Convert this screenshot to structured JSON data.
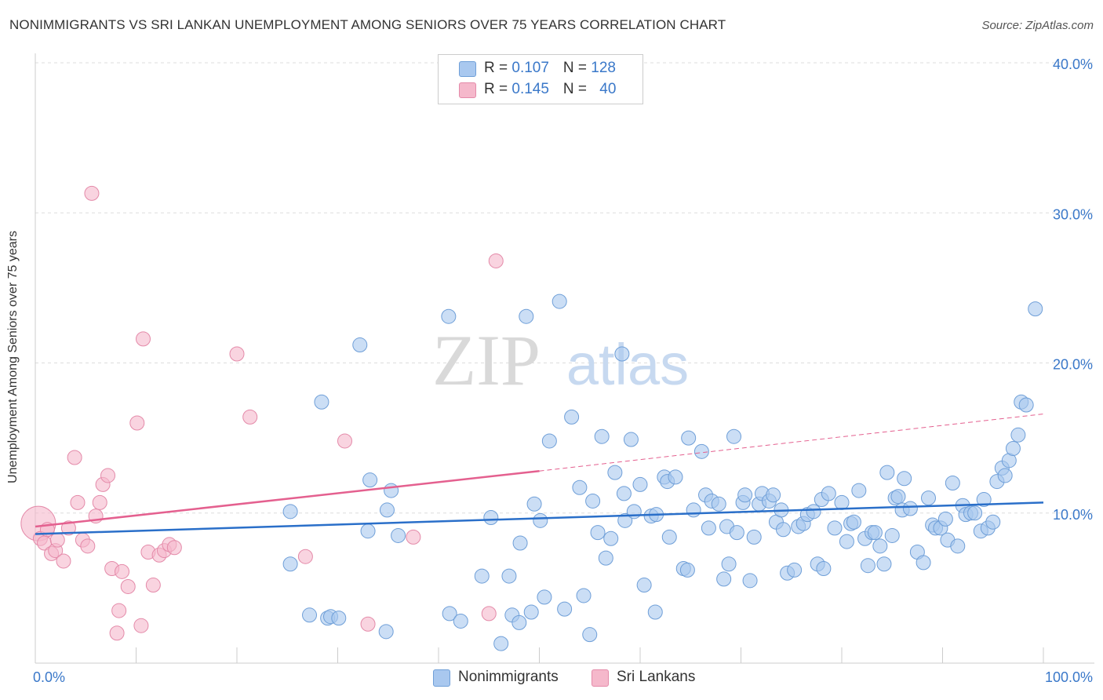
{
  "title": "NONIMMIGRANTS VS SRI LANKAN UNEMPLOYMENT AMONG SENIORS OVER 75 YEARS CORRELATION CHART",
  "source": "Source: ZipAtlas.com",
  "watermark": {
    "zip": "ZIP",
    "atlas": "atlas"
  },
  "legend": {
    "rows": [
      {
        "r_label": "R = ",
        "r_value": "0.107",
        "n_label": "N = ",
        "n_value": "128"
      },
      {
        "r_label": "R = ",
        "r_value": "0.145",
        "n_label": "N = ",
        "n_value": "40"
      }
    ]
  },
  "chart_data": {
    "type": "scatter",
    "title": "NONIMMIGRANTS VS SRI LANKAN UNEMPLOYMENT AMONG SENIORS OVER 75 YEARS CORRELATION CHART",
    "xlabel": "",
    "ylabel": "Unemployment Among Seniors over 75 years",
    "xlim": [
      0,
      100
    ],
    "ylim": [
      0,
      40
    ],
    "x_tick_labels": [
      "0.0%",
      "100.0%"
    ],
    "y_ticks": [
      10,
      20,
      30,
      40
    ],
    "y_tick_labels": [
      "10.0%",
      "20.0%",
      "30.0%",
      "40.0%"
    ],
    "grid": true,
    "colors": {
      "nonimmigrants_fill": "#a9c8ef",
      "nonimmigrants_stroke": "#6f9fd8",
      "nonimmigrants_line": "#2a6fc9",
      "srilankans_fill": "#f5b8cb",
      "srilankans_stroke": "#e48aa9",
      "srilankans_line": "#e4608f",
      "tick_label": "#3a78c9"
    },
    "series": [
      {
        "name": "Nonimmigrants",
        "R": 0.107,
        "N": 128,
        "trend": {
          "x0": 0,
          "y0": 8.6,
          "x1": 100,
          "y1": 10.7
        },
        "points": [
          [
            25.3,
            10.1
          ],
          [
            28.4,
            17.4
          ],
          [
            29.0,
            3.0
          ],
          [
            27.2,
            3.2
          ],
          [
            25.3,
            6.6
          ],
          [
            29.3,
            3.1
          ],
          [
            30.1,
            3.0
          ],
          [
            32.2,
            21.2
          ],
          [
            33.2,
            12.2
          ],
          [
            33.0,
            8.8
          ],
          [
            34.9,
            10.2
          ],
          [
            35.3,
            11.5
          ],
          [
            34.8,
            2.1
          ],
          [
            36.0,
            8.5
          ],
          [
            41.0,
            23.1
          ],
          [
            41.1,
            3.3
          ],
          [
            42.2,
            2.8
          ],
          [
            44.3,
            5.8
          ],
          [
            45.2,
            9.7
          ],
          [
            46.2,
            1.3
          ],
          [
            47.0,
            5.8
          ],
          [
            47.3,
            3.2
          ],
          [
            48.1,
            8.0
          ],
          [
            48.7,
            23.1
          ],
          [
            48.0,
            2.7
          ],
          [
            49.2,
            3.4
          ],
          [
            49.5,
            10.6
          ],
          [
            50.1,
            9.5
          ],
          [
            50.5,
            4.4
          ],
          [
            51.0,
            14.8
          ],
          [
            52.0,
            24.1
          ],
          [
            52.5,
            3.6
          ],
          [
            53.2,
            16.4
          ],
          [
            54.0,
            11.7
          ],
          [
            54.4,
            4.5
          ],
          [
            55.0,
            1.9
          ],
          [
            55.3,
            10.8
          ],
          [
            55.8,
            8.7
          ],
          [
            56.2,
            15.1
          ],
          [
            56.6,
            7.0
          ],
          [
            57.1,
            8.3
          ],
          [
            57.5,
            12.7
          ],
          [
            58.2,
            20.6
          ],
          [
            58.4,
            11.3
          ],
          [
            58.5,
            9.5
          ],
          [
            59.1,
            14.9
          ],
          [
            59.4,
            10.1
          ],
          [
            60.0,
            11.9
          ],
          [
            60.4,
            5.2
          ],
          [
            61.1,
            9.8
          ],
          [
            61.5,
            3.4
          ],
          [
            61.6,
            9.9
          ],
          [
            62.4,
            12.4
          ],
          [
            62.7,
            12.1
          ],
          [
            62.9,
            8.4
          ],
          [
            63.5,
            12.4
          ],
          [
            64.3,
            6.3
          ],
          [
            64.7,
            6.2
          ],
          [
            64.8,
            15.0
          ],
          [
            65.3,
            10.2
          ],
          [
            66.1,
            14.1
          ],
          [
            66.5,
            11.2
          ],
          [
            66.8,
            9.0
          ],
          [
            67.1,
            10.8
          ],
          [
            67.8,
            10.6
          ],
          [
            68.3,
            5.6
          ],
          [
            68.6,
            9.1
          ],
          [
            68.8,
            6.6
          ],
          [
            69.3,
            15.1
          ],
          [
            69.6,
            8.7
          ],
          [
            70.2,
            10.7
          ],
          [
            70.4,
            11.2
          ],
          [
            70.9,
            5.5
          ],
          [
            71.3,
            8.4
          ],
          [
            71.8,
            10.6
          ],
          [
            72.1,
            11.3
          ],
          [
            72.8,
            10.8
          ],
          [
            73.2,
            11.2
          ],
          [
            73.5,
            9.4
          ],
          [
            74.0,
            10.2
          ],
          [
            74.2,
            8.9
          ],
          [
            74.6,
            6.0
          ],
          [
            75.3,
            6.2
          ],
          [
            75.7,
            9.1
          ],
          [
            76.2,
            9.3
          ],
          [
            76.6,
            9.9
          ],
          [
            77.2,
            10.1
          ],
          [
            77.6,
            6.6
          ],
          [
            78.0,
            10.9
          ],
          [
            78.2,
            6.3
          ],
          [
            78.7,
            11.3
          ],
          [
            79.3,
            9.0
          ],
          [
            80.0,
            10.7
          ],
          [
            80.5,
            8.1
          ],
          [
            80.9,
            9.3
          ],
          [
            81.2,
            9.4
          ],
          [
            81.7,
            11.5
          ],
          [
            82.3,
            8.3
          ],
          [
            82.6,
            6.5
          ],
          [
            83.0,
            8.7
          ],
          [
            83.3,
            8.7
          ],
          [
            83.8,
            7.8
          ],
          [
            84.2,
            6.6
          ],
          [
            84.5,
            12.7
          ],
          [
            85.0,
            8.5
          ],
          [
            85.3,
            11.0
          ],
          [
            85.6,
            11.1
          ],
          [
            86.0,
            10.2
          ],
          [
            86.2,
            12.3
          ],
          [
            86.8,
            10.3
          ],
          [
            87.5,
            7.4
          ],
          [
            88.1,
            6.7
          ],
          [
            88.6,
            11.0
          ],
          [
            89.0,
            9.2
          ],
          [
            89.3,
            9.0
          ],
          [
            89.8,
            9.0
          ],
          [
            90.3,
            9.6
          ],
          [
            90.5,
            8.2
          ],
          [
            91.0,
            12.0
          ],
          [
            91.5,
            7.8
          ],
          [
            92.0,
            10.5
          ],
          [
            92.3,
            9.9
          ],
          [
            92.8,
            10.0
          ],
          [
            93.2,
            10.0
          ],
          [
            93.8,
            8.8
          ],
          [
            94.1,
            10.9
          ],
          [
            94.5,
            9.0
          ],
          [
            95.0,
            9.4
          ],
          [
            95.4,
            12.1
          ],
          [
            95.9,
            13.0
          ],
          [
            96.2,
            12.5
          ],
          [
            96.6,
            13.5
          ],
          [
            97.0,
            14.3
          ],
          [
            97.5,
            15.2
          ],
          [
            97.8,
            17.4
          ],
          [
            98.3,
            17.2
          ],
          [
            99.2,
            23.6
          ]
        ]
      },
      {
        "name": "Sri Lankans",
        "R": 0.145,
        "N": 40,
        "trend": {
          "x0": 0,
          "y0": 9.1,
          "x1": 50,
          "y1": 12.8,
          "dashed_to_x": 100,
          "dashed_to_y": 16.6
        },
        "points": [
          [
            0.3,
            9.3
          ],
          [
            0.5,
            8.3
          ],
          [
            0.9,
            8.0
          ],
          [
            1.2,
            8.9
          ],
          [
            1.6,
            7.3
          ],
          [
            2.0,
            7.5
          ],
          [
            2.2,
            8.2
          ],
          [
            2.8,
            6.8
          ],
          [
            3.3,
            9.0
          ],
          [
            3.9,
            13.7
          ],
          [
            4.2,
            10.7
          ],
          [
            4.7,
            8.2
          ],
          [
            5.2,
            7.8
          ],
          [
            5.6,
            31.3
          ],
          [
            6.0,
            9.8
          ],
          [
            6.4,
            10.7
          ],
          [
            6.7,
            11.9
          ],
          [
            7.2,
            12.5
          ],
          [
            7.6,
            6.3
          ],
          [
            8.1,
            2.0
          ],
          [
            8.3,
            3.5
          ],
          [
            8.6,
            6.1
          ],
          [
            9.2,
            5.1
          ],
          [
            10.1,
            16.0
          ],
          [
            10.5,
            2.5
          ],
          [
            10.7,
            21.6
          ],
          [
            11.2,
            7.4
          ],
          [
            11.7,
            5.2
          ],
          [
            12.3,
            7.2
          ],
          [
            12.8,
            7.5
          ],
          [
            13.3,
            7.9
          ],
          [
            13.8,
            7.7
          ],
          [
            20.0,
            20.6
          ],
          [
            21.3,
            16.4
          ],
          [
            26.8,
            7.1
          ],
          [
            30.7,
            14.8
          ],
          [
            33.0,
            2.6
          ],
          [
            37.5,
            8.4
          ],
          [
            45.0,
            3.3
          ],
          [
            45.7,
            26.8
          ]
        ]
      }
    ]
  },
  "bottom_legend": [
    "Nonimmigrants",
    "Sri Lankans"
  ]
}
